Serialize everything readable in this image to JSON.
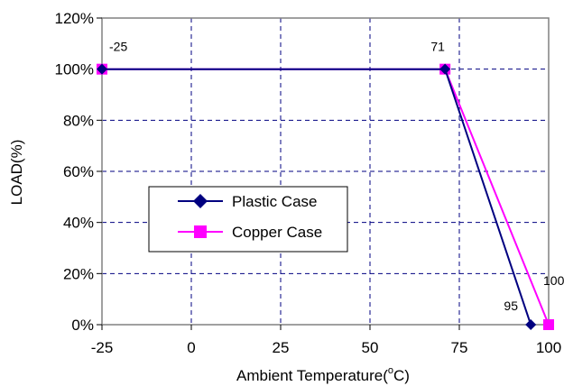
{
  "chart_data": {
    "type": "line",
    "xlabel": "Ambient Temperature(",
    "xlabel_sup": "o",
    "xlabel_tail": "C)",
    "ylabel": "LOAD(%)",
    "xlim": [
      -25,
      100
    ],
    "ylim": [
      0,
      120
    ],
    "x_ticks": [
      -25,
      0,
      25,
      50,
      75,
      100
    ],
    "x_tick_labels": [
      "-25",
      "0",
      "25",
      "50",
      "75",
      "100"
    ],
    "y_ticks": [
      0,
      20,
      40,
      60,
      80,
      100,
      120
    ],
    "y_tick_labels": [
      "0%",
      "20%",
      "40%",
      "60%",
      "80%",
      "100%",
      "120%"
    ],
    "grid": true,
    "legend_position": "center-left",
    "series": [
      {
        "name": "Plastic Case",
        "color": "#000080",
        "marker": "diamond",
        "x": [
          -25,
          71,
          95
        ],
        "y": [
          100,
          100,
          0
        ]
      },
      {
        "name": "Copper Case",
        "color": "#ff00ff",
        "marker": "square",
        "x": [
          -25,
          71,
          100
        ],
        "y": [
          100,
          100,
          0
        ]
      }
    ],
    "annotations": [
      {
        "text": "-25",
        "x": -25,
        "y": 100
      },
      {
        "text": "71",
        "x": 71,
        "y": 100
      },
      {
        "text": "95",
        "x": 95,
        "y": 0
      },
      {
        "text": "100",
        "x": 100,
        "y": 0
      }
    ]
  }
}
